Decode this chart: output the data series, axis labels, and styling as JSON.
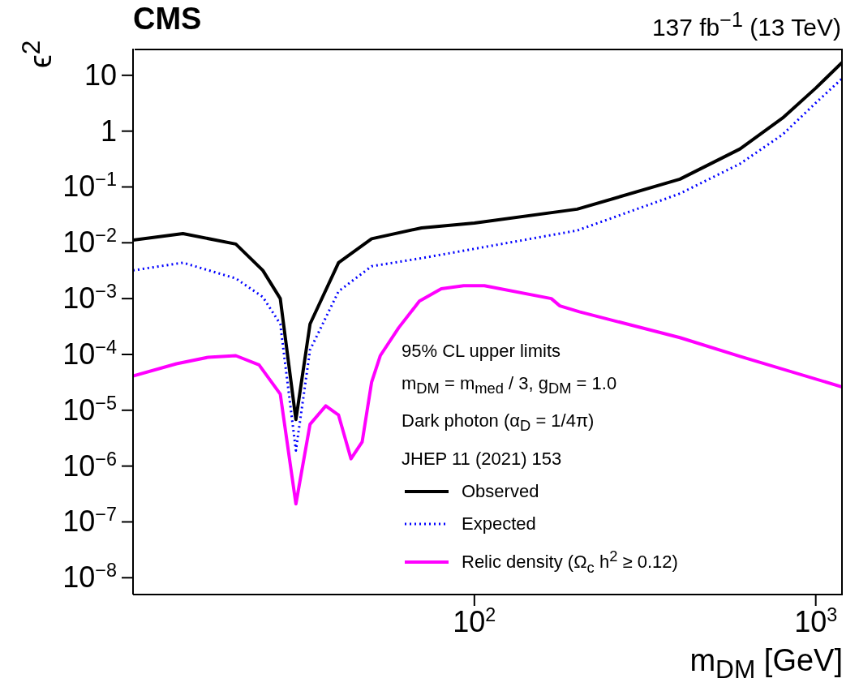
{
  "chart_data": {
    "type": "line",
    "title": "CMS",
    "subtitle": "137 fb$^{−1}$ (13 TeV)",
    "xlabel": "m$_{DM}$ [GeV]",
    "ylabel": "ϵ$^{2}$",
    "legend_title": "95% CL upper limits",
    "annotations": [
      "m$_{DM}$ = m$_{med}$ / 3, g$_{DM}$ = 1.0",
      "Dark photon (α$_{D}$ = 1/4π)",
      "JHEP 11 (2021) 153"
    ],
    "log": "xy",
    "legend": "bottom right",
    "marker": "none",
    "xlim": [
      10,
      1200
    ],
    "xticks": [
      {
        "value": 100,
        "label": "10$^{2}$"
      },
      {
        "value": 1000,
        "label": "10$^{3}$"
      }
    ],
    "ylim": [
      5e-09,
      30
    ],
    "yticks": [
      {
        "value": 1e-08,
        "label": "10$^{−8}$"
      },
      {
        "value": 1e-07,
        "label": "10$^{−7}$"
      },
      {
        "value": 1e-06,
        "label": "10$^{−6}$"
      },
      {
        "value": 1e-05,
        "label": "10$^{−5}$"
      },
      {
        "value": 0.0001,
        "label": "10$^{−4}$"
      },
      {
        "value": 0.001,
        "label": "10$^{−3}$"
      },
      {
        "value": 0.01,
        "label": "10$^{−2}$"
      },
      {
        "value": 0.1,
        "label": "10$^{−1}$"
      },
      1,
      10
    ],
    "series": [
      {
        "name": "Observed",
        "color": "#000000",
        "line_style": "solid",
        "x": [
          10,
          14,
          20,
          24,
          27,
          30,
          33,
          40,
          50,
          70,
          100,
          200,
          400,
          600,
          800,
          1000,
          1200
        ],
        "values": [
          0.0112,
          0.0146,
          0.0095,
          0.0032,
          0.001,
          6.8e-06,
          0.00035,
          0.0044,
          0.0118,
          0.0185,
          0.0226,
          0.04,
          0.138,
          0.48,
          1.72,
          5.9,
          17.4
        ]
      },
      {
        "name": "Expected",
        "color": "#0000ff",
        "line_style": "dotted",
        "x": [
          10,
          14,
          20,
          24,
          27,
          30,
          33,
          40,
          50,
          70,
          100,
          200,
          400,
          600,
          800,
          1000,
          1200
        ],
        "values": [
          0.0032,
          0.0044,
          0.0023,
          0.00107,
          0.00035,
          1.9e-06,
          0.00012,
          0.00135,
          0.0038,
          0.0053,
          0.0078,
          0.0166,
          0.076,
          0.26,
          0.87,
          3.2,
          9
        ]
      },
      {
        "name": "Relic density (Ω$_{c}$ h$^{2}$ ≥ 0.12)",
        "color": "#ff00ff",
        "line_style": "solid",
        "x": [
          10,
          13.4,
          16.6,
          20,
          23.4,
          27,
          30,
          33,
          36.7,
          40,
          43.5,
          46.9,
          50,
          53,
          60,
          69,
          80,
          93,
          107,
          168,
          178,
          203,
          400,
          600,
          1200
        ],
        "values": [
          4.1e-05,
          6.8e-05,
          8.9e-05,
          9.5e-05,
          6.5e-05,
          1.95e-05,
          2.1e-07,
          5.6e-06,
          1.2e-05,
          8.2e-06,
          1.35e-06,
          2.7e-06,
          3.2e-05,
          9.5e-05,
          0.0003,
          0.0009,
          0.0015,
          0.0017,
          0.0017,
          0.001,
          0.00074,
          0.00058,
          0.0002,
          9.2e-05,
          2.6e-05
        ]
      }
    ]
  }
}
